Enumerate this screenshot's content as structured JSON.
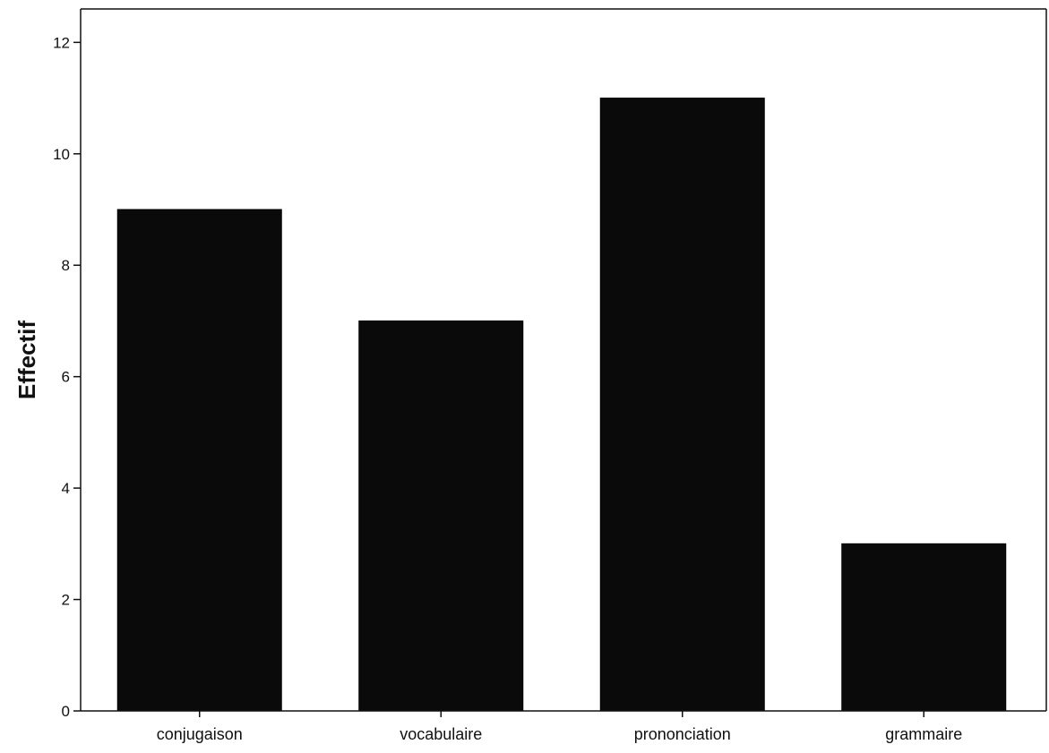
{
  "chart_data": {
    "type": "bar",
    "categories": [
      "conjugaison",
      "vocabulaire",
      "prononciation",
      "grammaire"
    ],
    "values": [
      9,
      7,
      11,
      3
    ],
    "title": "",
    "xlabel": "",
    "ylabel": "Effectif",
    "ylim": [
      0,
      12.6
    ],
    "yticks": [
      "0",
      "2",
      "4",
      "6",
      "8",
      "10",
      "12"
    ],
    "grid": false,
    "legend": "none",
    "bar_color": "#0a0a0a",
    "axis_color": "#111111"
  }
}
